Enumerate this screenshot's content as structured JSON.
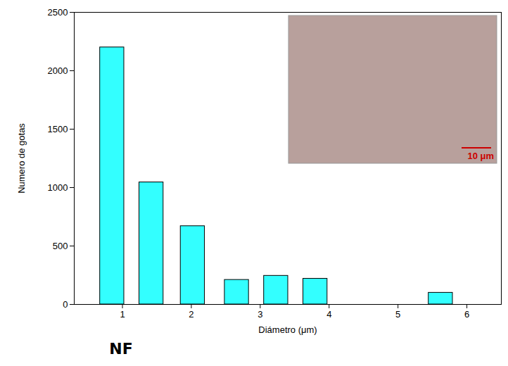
{
  "chart_data": {
    "type": "bar",
    "x": [
      0.85,
      1.42,
      2.02,
      2.66,
      3.23,
      3.8,
      5.62
    ],
    "values": [
      2200,
      1045,
      670,
      210,
      245,
      220,
      100
    ],
    "color": "#33ffff",
    "xlabel": "Diámetro (μm)",
    "ylabel": "Numero de gotas",
    "xlim": [
      0.3,
      6.5
    ],
    "xticks": [
      1,
      2,
      3,
      4,
      5,
      6
    ],
    "ylim": [
      0,
      2500
    ],
    "yticks": [
      0,
      500,
      1000,
      1500,
      2000,
      2500
    ],
    "grid": false,
    "annotations": [
      {
        "text": "NF"
      },
      {
        "text": "10 μm"
      }
    ]
  }
}
